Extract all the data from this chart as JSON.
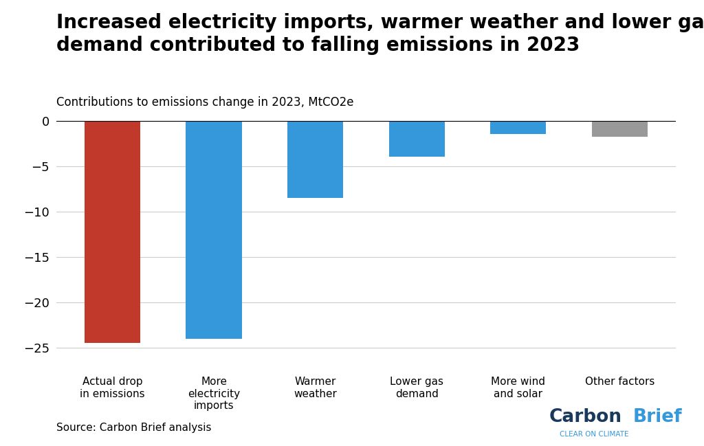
{
  "title_line1": "Increased electricity imports, warmer weather and lower gas",
  "title_line2": "demand contributed to falling emissions in 2023",
  "subtitle": "Contributions to emissions change in 2023, MtCO2e",
  "categories": [
    "Actual drop\nin emissions",
    "More\nelectricity\nimports",
    "Warmer\nweather",
    "Lower gas\ndemand",
    "More wind\nand solar",
    "Other factors"
  ],
  "values": [
    -24.5,
    -24.0,
    -8.5,
    -4.0,
    -1.5,
    -1.8
  ],
  "bar_colors": [
    "#c0392b",
    "#3498db",
    "#3498db",
    "#3498db",
    "#3498db",
    "#999999"
  ],
  "ylim": [
    -27,
    1.5
  ],
  "yticks": [
    0,
    -5,
    -10,
    -15,
    -20,
    -25
  ],
  "source_text": "Source: Carbon Brief analysis",
  "carbonbrief_carbon": "#1a3a5c",
  "carbonbrief_brief": "#3498db",
  "carbonbrief_sub": "#3498db",
  "background_color": "#ffffff",
  "grid_color": "#cccccc",
  "title_fontsize": 20,
  "subtitle_fontsize": 12,
  "tick_fontsize": 13,
  "xlabel_fontsize": 11,
  "source_fontsize": 11
}
